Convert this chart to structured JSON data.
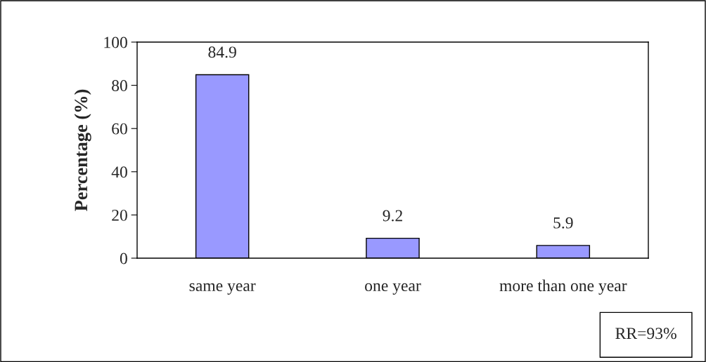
{
  "chart_data": {
    "type": "bar",
    "ylabel": "Percentage (%)",
    "categories": [
      "same year",
      "one year",
      "more than one year"
    ],
    "series": [
      {
        "color": "#9999ff",
        "values": [
          84.9,
          9.2,
          5.9
        ]
      }
    ],
    "ylim": [
      0,
      100
    ],
    "yticks": [
      0,
      20,
      40,
      60,
      80,
      100
    ],
    "data_labels": true,
    "grid": false,
    "legend": false,
    "annotations": [
      "RR=93%"
    ]
  }
}
